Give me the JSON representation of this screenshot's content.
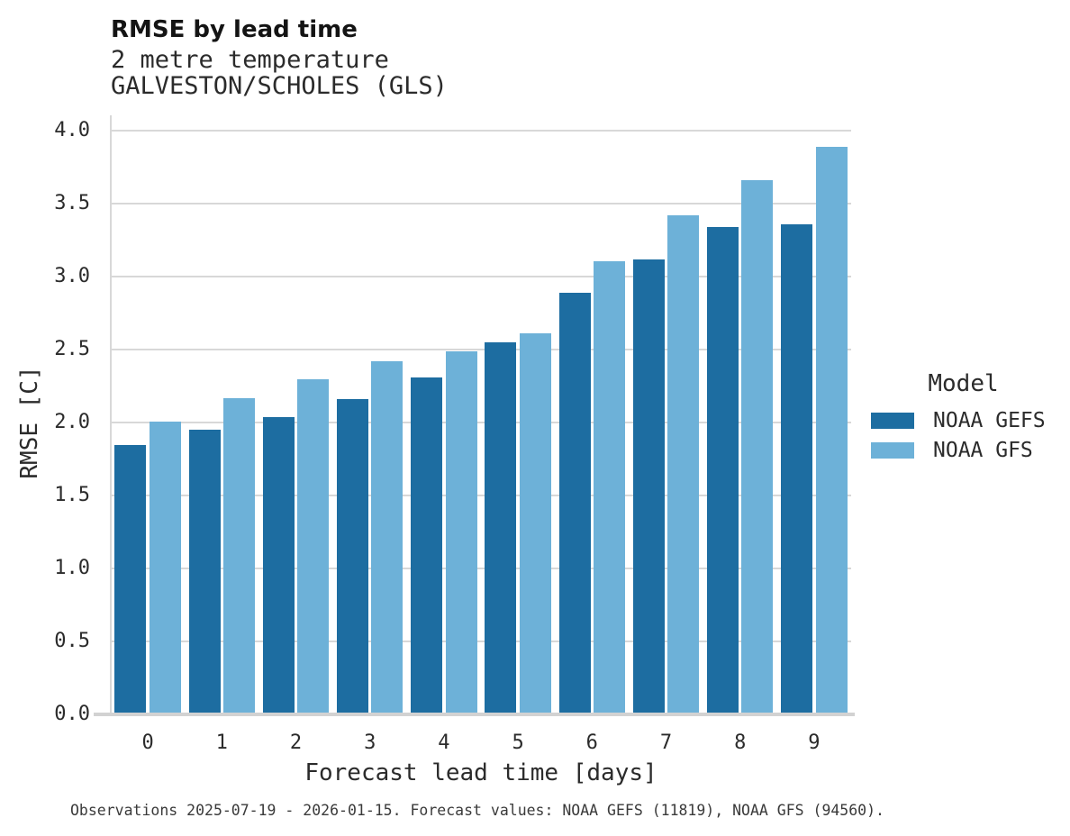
{
  "title": "RMSE by lead time",
  "subtitle_lines": [
    "2 metre temperature",
    "GALVESTON/SCHOLES (GLS)"
  ],
  "caption": "Observations 2025-07-19 - 2026-01-15. Forecast values: NOAA GEFS (11819), NOAA GFS (94560).",
  "legend": {
    "title": "Model"
  },
  "colors": {
    "noaa_gefs": "#1d6da1",
    "noaa_gfs": "#6db1d8",
    "grid": "#d8d8d8",
    "text": "#2b2b2b"
  },
  "chart_data": {
    "type": "bar",
    "title": "RMSE by lead time",
    "subtitle": "2 metre temperature, GALVESTON/SCHOLES (GLS)",
    "xlabel": "Forecast lead time [days]",
    "ylabel": "RMSE [C]",
    "categories": [
      0,
      1,
      2,
      3,
      4,
      5,
      6,
      7,
      8,
      9
    ],
    "series": [
      {
        "name": "NOAA GEFS",
        "color": "#1d6da1",
        "values": [
          1.85,
          1.95,
          2.04,
          2.16,
          2.31,
          2.55,
          2.89,
          3.12,
          3.34,
          3.36
        ]
      },
      {
        "name": "NOAA GFS",
        "color": "#6db1d8",
        "values": [
          2.01,
          2.17,
          2.3,
          2.42,
          2.49,
          2.61,
          3.11,
          3.42,
          3.66,
          3.89
        ]
      }
    ],
    "ylim": [
      0.0,
      4.0
    ],
    "yticks": [
      0.0,
      0.5,
      1.0,
      1.5,
      2.0,
      2.5,
      3.0,
      3.5,
      4.0
    ],
    "grid": true,
    "legend_position": "right",
    "legend_title": "Model"
  }
}
